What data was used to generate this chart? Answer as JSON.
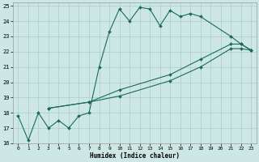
{
  "xlabel": "Humidex (Indice chaleur)",
  "xlim": [
    -0.5,
    23.5
  ],
  "ylim": [
    16,
    25.2
  ],
  "yticks": [
    16,
    17,
    18,
    19,
    20,
    21,
    22,
    23,
    24,
    25
  ],
  "xticks": [
    0,
    1,
    2,
    3,
    4,
    5,
    6,
    7,
    8,
    9,
    10,
    11,
    12,
    13,
    14,
    15,
    16,
    17,
    18,
    19,
    20,
    21,
    22,
    23
  ],
  "bg_color": "#cde8e4",
  "grid_color": "#aaccca",
  "line_color": "#1a6b5a",
  "line1_x": [
    0,
    1,
    2,
    3,
    4,
    5,
    6,
    7,
    8,
    9,
    10,
    11,
    12,
    13,
    14,
    15,
    16,
    17,
    18,
    21,
    22,
    23
  ],
  "line1_y": [
    17.8,
    16.2,
    18.0,
    17.0,
    17.5,
    17.0,
    17.8,
    18.0,
    21.0,
    23.3,
    24.8,
    24.0,
    24.9,
    24.8,
    23.7,
    24.7,
    24.3,
    24.5,
    24.3,
    23.0,
    22.5,
    22.1
  ],
  "line2_x": [
    3,
    7,
    10,
    15,
    18,
    21,
    22,
    23
  ],
  "line2_y": [
    18.3,
    18.7,
    19.5,
    20.5,
    21.5,
    22.5,
    22.5,
    22.1
  ],
  "line3_x": [
    3,
    7,
    10,
    15,
    18,
    21,
    22,
    23
  ],
  "line3_y": [
    18.3,
    18.7,
    19.1,
    20.1,
    21.0,
    22.2,
    22.2,
    22.1
  ]
}
